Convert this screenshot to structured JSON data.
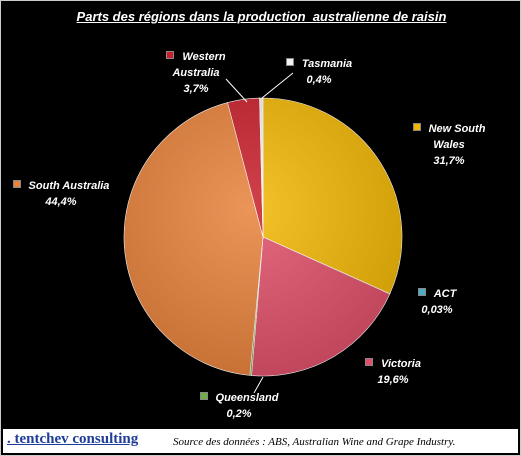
{
  "chart_data": {
    "type": "pie",
    "title": "Parts des régions dans la production  australienne de raisin",
    "categories": [
      "New South Wales",
      "ACT",
      "Victoria",
      "Queensland",
      "South Australia",
      "Western Australia",
      "Tasmania"
    ],
    "values": [
      31.7,
      0.03,
      19.6,
      0.2,
      44.4,
      3.7,
      0.4
    ],
    "value_labels": [
      "31,7%",
      "0,03%",
      "19,6%",
      "0,2%",
      "44,4%",
      "3,7%",
      "0,4%"
    ],
    "colors": [
      "#f2b705",
      "#4bacc6",
      "#e0506a",
      "#70ad47",
      "#e8823c",
      "#c8202c",
      "#f2f2f2"
    ]
  },
  "footer": {
    "brand": ". tentchev consulting",
    "source": "Source des données : ABS, Australian Wine and Grape Industry."
  }
}
